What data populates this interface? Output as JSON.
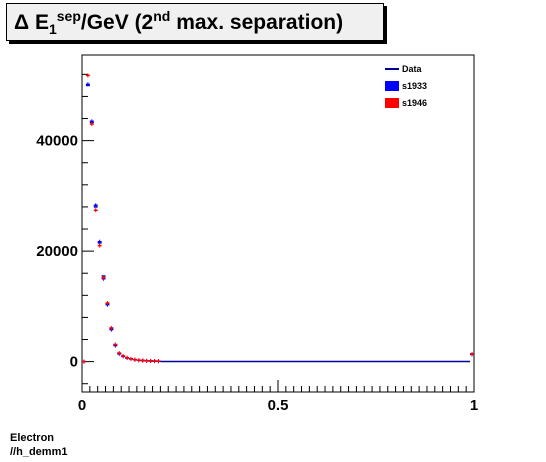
{
  "title": {
    "delta": "Δ",
    "e_letter": "E",
    "sub": "1",
    "sup": "sep",
    "unit": "/GeV (2",
    "nd": "nd",
    "rest": " max. separation)"
  },
  "footer": {
    "line1": "Electron",
    "line2": "//h_demm1"
  },
  "colors": {
    "data": "#000099",
    "s1933": "#0000ff",
    "s1946": "#ff0000"
  },
  "chart_data": {
    "type": "histogram",
    "xlim": [
      0,
      1
    ],
    "ylim": [
      -5500,
      55500
    ],
    "x_ticks": [
      {
        "v": 0,
        "label": "0"
      },
      {
        "v": 0.5,
        "label": "0.5"
      },
      {
        "v": 1,
        "label": "1"
      }
    ],
    "y_ticks": [
      {
        "v": 0,
        "label": "0"
      },
      {
        "v": 20000,
        "label": "20000"
      },
      {
        "v": 40000,
        "label": "40000"
      }
    ],
    "legend": [
      {
        "name": "Data",
        "style": "line",
        "color": "#000099"
      },
      {
        "name": "s1933",
        "style": "box",
        "color": "#0000ff"
      },
      {
        "name": "s1946",
        "style": "box",
        "color": "#ff0000"
      }
    ],
    "bin_width": 0.01,
    "series": [
      {
        "name": "Data",
        "x": [
          0.005,
          0.015,
          0.025,
          0.035,
          0.045,
          0.055,
          0.065,
          0.075,
          0.085,
          0.095,
          0.105,
          0.115,
          0.125,
          0.135,
          0.145,
          0.155,
          0.165,
          0.175,
          0.185,
          0.195,
          0.995
        ],
        "values": [
          0,
          50000,
          43300,
          28000,
          21500,
          15500,
          10500,
          6000,
          3000,
          1500,
          1000,
          700,
          500,
          350,
          250,
          200,
          150,
          120,
          100,
          80,
          1400
        ]
      },
      {
        "name": "s1933",
        "x": [
          0.005,
          0.015,
          0.025,
          0.035,
          0.045,
          0.055,
          0.065,
          0.075,
          0.085,
          0.095,
          0.105,
          0.115,
          0.125,
          0.135,
          0.145,
          0.155,
          0.165,
          0.175,
          0.185,
          0.195,
          0.995
        ],
        "values": [
          0,
          50200,
          43500,
          28300,
          21700,
          15000,
          10300,
          5800,
          2900,
          1400,
          950,
          650,
          480,
          330,
          240,
          190,
          140,
          110,
          90,
          70,
          1300
        ]
      },
      {
        "name": "s1946",
        "x": [
          0.005,
          0.015,
          0.025,
          0.035,
          0.045,
          0.055,
          0.065,
          0.075,
          0.085,
          0.095,
          0.105,
          0.115,
          0.125,
          0.135,
          0.145,
          0.155,
          0.165,
          0.175,
          0.185,
          0.195,
          0.995
        ],
        "values": [
          0,
          51800,
          43000,
          27400,
          21000,
          15200,
          10600,
          6100,
          3100,
          1550,
          1020,
          720,
          510,
          360,
          260,
          210,
          160,
          125,
          105,
          85,
          1350
        ]
      }
    ]
  }
}
